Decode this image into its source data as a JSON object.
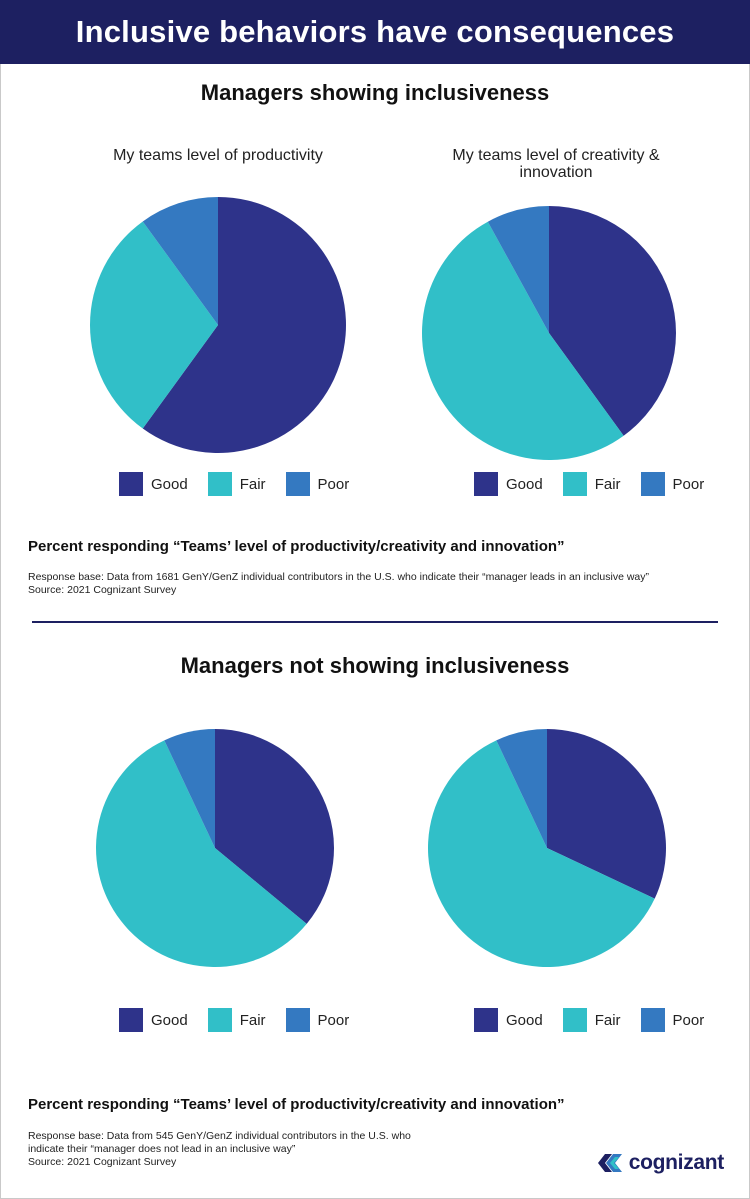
{
  "banner_title": "Inclusive behaviors have consequences",
  "section1": {
    "title": "Managers showing inclusiveness",
    "caption": "Percent responding “Teams’ level of productivity/creativity and innovation”",
    "note_lines": [
      "Response base: Data from 1681 GenY/GenZ individual contributors in the U.S. who indicate their “manager leads in an inclusive way”",
      "Source: 2021 Cognizant Survey"
    ]
  },
  "section2": {
    "title": "Managers not showing inclusiveness",
    "caption": "Percent responding “Teams’ level of productivity/creativity and innovation”",
    "note_lines": [
      "Response base: Data from 545 GenY/GenZ individual contributors in the U.S. who",
      "indicate their “manager does not lead in an inclusive way”",
      "Source: 2021 Cognizant Survey"
    ]
  },
  "legend": [
    "Good",
    "Fair",
    "Poor"
  ],
  "colors": {
    "Good": "#2e338a",
    "Fair": "#31bfc8",
    "Poor": "#3479c1",
    "banner": "#1d2061"
  },
  "logo_text": "cognizant",
  "chart_data": [
    {
      "type": "pie",
      "title": "My teams level of productivity",
      "categories": [
        "Good",
        "Fair",
        "Poor"
      ],
      "values": [
        60,
        30,
        10
      ],
      "legend_position": "bottom"
    },
    {
      "type": "pie",
      "title": "My teams level of creativity & innovation",
      "categories": [
        "Good",
        "Fair",
        "Poor"
      ],
      "values": [
        40,
        52,
        8
      ],
      "legend_position": "bottom"
    },
    {
      "type": "pie",
      "title": "",
      "categories": [
        "Good",
        "Fair",
        "Poor"
      ],
      "values": [
        36,
        57,
        7
      ],
      "legend_position": "bottom"
    },
    {
      "type": "pie",
      "title": "",
      "categories": [
        "Good",
        "Fair",
        "Poor"
      ],
      "values": [
        32,
        61,
        7
      ],
      "legend_position": "bottom"
    }
  ]
}
